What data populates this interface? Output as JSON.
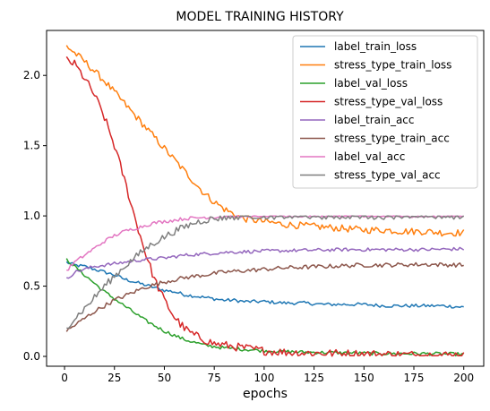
{
  "chart_data": {
    "type": "line",
    "title": "MODEL TRAINING HISTORY",
    "xlabel": "epochs",
    "ylabel": "",
    "xlim": [
      -9,
      210
    ],
    "ylim": [
      -0.07,
      2.32
    ],
    "xticks": [
      0,
      25,
      50,
      75,
      100,
      125,
      150,
      175,
      200
    ],
    "yticks": [
      0.0,
      0.5,
      1.0,
      1.5,
      2.0
    ],
    "ytick_labels": [
      "0.0",
      "0.5",
      "1.0",
      "1.5",
      "2.0"
    ],
    "grid": false,
    "legend_position": "upper-right",
    "series": [
      {
        "name": "label_train_loss",
        "color": "#1f77b4",
        "points": [
          [
            1,
            0.67
          ],
          [
            5,
            0.65
          ],
          [
            10,
            0.64
          ],
          [
            15,
            0.62
          ],
          [
            20,
            0.6
          ],
          [
            25,
            0.58
          ],
          [
            30,
            0.55
          ],
          [
            35,
            0.53
          ],
          [
            40,
            0.51
          ],
          [
            45,
            0.49
          ],
          [
            50,
            0.47
          ],
          [
            55,
            0.46
          ],
          [
            60,
            0.44
          ],
          [
            65,
            0.43
          ],
          [
            70,
            0.42
          ],
          [
            75,
            0.41
          ],
          [
            80,
            0.4
          ],
          [
            85,
            0.4
          ],
          [
            90,
            0.39
          ],
          [
            100,
            0.39
          ],
          [
            110,
            0.38
          ],
          [
            120,
            0.38
          ],
          [
            130,
            0.37
          ],
          [
            140,
            0.37
          ],
          [
            150,
            0.37
          ],
          [
            160,
            0.36
          ],
          [
            170,
            0.36
          ],
          [
            180,
            0.36
          ],
          [
            190,
            0.36
          ],
          [
            200,
            0.35
          ]
        ],
        "noise": 0.012
      },
      {
        "name": "stress_type_train_loss",
        "color": "#ff7f0e",
        "points": [
          [
            1,
            2.21
          ],
          [
            5,
            2.16
          ],
          [
            10,
            2.1
          ],
          [
            15,
            2.03
          ],
          [
            20,
            1.96
          ],
          [
            25,
            1.88
          ],
          [
            30,
            1.8
          ],
          [
            35,
            1.72
          ],
          [
            40,
            1.64
          ],
          [
            45,
            1.56
          ],
          [
            50,
            1.48
          ],
          [
            55,
            1.4
          ],
          [
            60,
            1.32
          ],
          [
            65,
            1.24
          ],
          [
            70,
            1.16
          ],
          [
            75,
            1.1
          ],
          [
            80,
            1.05
          ],
          [
            85,
            1.01
          ],
          [
            90,
            0.98
          ],
          [
            100,
            0.96
          ],
          [
            110,
            0.94
          ],
          [
            120,
            0.93
          ],
          [
            130,
            0.92
          ],
          [
            140,
            0.91
          ],
          [
            150,
            0.9
          ],
          [
            160,
            0.9
          ],
          [
            170,
            0.89
          ],
          [
            180,
            0.89
          ],
          [
            190,
            0.88
          ],
          [
            200,
            0.88
          ]
        ],
        "noise": 0.025
      },
      {
        "name": "label_val_loss",
        "color": "#2ca02c",
        "points": [
          [
            1,
            0.69
          ],
          [
            5,
            0.64
          ],
          [
            10,
            0.58
          ],
          [
            15,
            0.52
          ],
          [
            20,
            0.46
          ],
          [
            25,
            0.41
          ],
          [
            30,
            0.36
          ],
          [
            35,
            0.31
          ],
          [
            40,
            0.26
          ],
          [
            45,
            0.22
          ],
          [
            50,
            0.18
          ],
          [
            55,
            0.15
          ],
          [
            60,
            0.12
          ],
          [
            65,
            0.1
          ],
          [
            70,
            0.08
          ],
          [
            75,
            0.07
          ],
          [
            80,
            0.06
          ],
          [
            90,
            0.05
          ],
          [
            100,
            0.04
          ],
          [
            110,
            0.035
          ],
          [
            120,
            0.03
          ],
          [
            140,
            0.025
          ],
          [
            160,
            0.02
          ],
          [
            180,
            0.02
          ],
          [
            200,
            0.015
          ]
        ],
        "noise": 0.012
      },
      {
        "name": "stress_type_val_loss",
        "color": "#d62728",
        "points": [
          [
            1,
            2.11
          ],
          [
            5,
            2.08
          ],
          [
            10,
            1.98
          ],
          [
            15,
            1.86
          ],
          [
            20,
            1.7
          ],
          [
            25,
            1.5
          ],
          [
            30,
            1.26
          ],
          [
            35,
            1.0
          ],
          [
            40,
            0.76
          ],
          [
            45,
            0.55
          ],
          [
            50,
            0.4
          ],
          [
            55,
            0.28
          ],
          [
            60,
            0.2
          ],
          [
            65,
            0.15
          ],
          [
            70,
            0.12
          ],
          [
            75,
            0.09
          ],
          [
            80,
            0.08
          ],
          [
            90,
            0.06
          ],
          [
            100,
            0.04
          ],
          [
            110,
            0.03
          ],
          [
            120,
            0.025
          ],
          [
            140,
            0.02
          ],
          [
            160,
            0.015
          ],
          [
            180,
            0.01
          ],
          [
            200,
            0.01
          ]
        ],
        "noise": 0.03
      },
      {
        "name": "label_train_acc",
        "color": "#9467bd",
        "points": [
          [
            1,
            0.55
          ],
          [
            5,
            0.6
          ],
          [
            10,
            0.62
          ],
          [
            15,
            0.64
          ],
          [
            20,
            0.65
          ],
          [
            25,
            0.66
          ],
          [
            30,
            0.67
          ],
          [
            40,
            0.69
          ],
          [
            50,
            0.7
          ],
          [
            60,
            0.72
          ],
          [
            70,
            0.73
          ],
          [
            80,
            0.74
          ],
          [
            90,
            0.745
          ],
          [
            100,
            0.75
          ],
          [
            120,
            0.755
          ],
          [
            140,
            0.76
          ],
          [
            160,
            0.76
          ],
          [
            180,
            0.76
          ],
          [
            200,
            0.765
          ]
        ],
        "noise": 0.012
      },
      {
        "name": "stress_type_train_acc",
        "color": "#8c564b",
        "points": [
          [
            1,
            0.18
          ],
          [
            5,
            0.22
          ],
          [
            10,
            0.27
          ],
          [
            15,
            0.32
          ],
          [
            20,
            0.36
          ],
          [
            25,
            0.4
          ],
          [
            30,
            0.43
          ],
          [
            35,
            0.46
          ],
          [
            40,
            0.49
          ],
          [
            45,
            0.51
          ],
          [
            50,
            0.53
          ],
          [
            60,
            0.56
          ],
          [
            70,
            0.58
          ],
          [
            80,
            0.6
          ],
          [
            90,
            0.61
          ],
          [
            100,
            0.62
          ],
          [
            110,
            0.63
          ],
          [
            120,
            0.635
          ],
          [
            130,
            0.64
          ],
          [
            140,
            0.645
          ],
          [
            150,
            0.65
          ],
          [
            160,
            0.65
          ],
          [
            180,
            0.655
          ],
          [
            200,
            0.65
          ]
        ],
        "noise": 0.015
      },
      {
        "name": "label_val_acc",
        "color": "#e377c2",
        "points": [
          [
            1,
            0.61
          ],
          [
            5,
            0.67
          ],
          [
            10,
            0.72
          ],
          [
            15,
            0.77
          ],
          [
            20,
            0.82
          ],
          [
            25,
            0.86
          ],
          [
            30,
            0.89
          ],
          [
            35,
            0.91
          ],
          [
            40,
            0.93
          ],
          [
            45,
            0.95
          ],
          [
            50,
            0.96
          ],
          [
            55,
            0.97
          ],
          [
            60,
            0.98
          ],
          [
            70,
            0.99
          ],
          [
            80,
            0.995
          ],
          [
            90,
            1.0
          ],
          [
            120,
            1.0
          ],
          [
            150,
            1.0
          ],
          [
            200,
            1.0
          ]
        ],
        "noise": 0.012
      },
      {
        "name": "stress_type_val_acc",
        "color": "#7f7f7f",
        "points": [
          [
            1,
            0.21
          ],
          [
            5,
            0.27
          ],
          [
            10,
            0.34
          ],
          [
            15,
            0.42
          ],
          [
            20,
            0.5
          ],
          [
            25,
            0.57
          ],
          [
            30,
            0.64
          ],
          [
            35,
            0.7
          ],
          [
            40,
            0.76
          ],
          [
            45,
            0.81
          ],
          [
            50,
            0.85
          ],
          [
            55,
            0.89
          ],
          [
            60,
            0.92
          ],
          [
            65,
            0.95
          ],
          [
            70,
            0.97
          ],
          [
            75,
            0.98
          ],
          [
            80,
            0.99
          ],
          [
            90,
            1.0
          ],
          [
            120,
            1.0
          ],
          [
            150,
            1.0
          ],
          [
            200,
            1.0
          ]
        ],
        "noise": 0.025
      }
    ]
  }
}
